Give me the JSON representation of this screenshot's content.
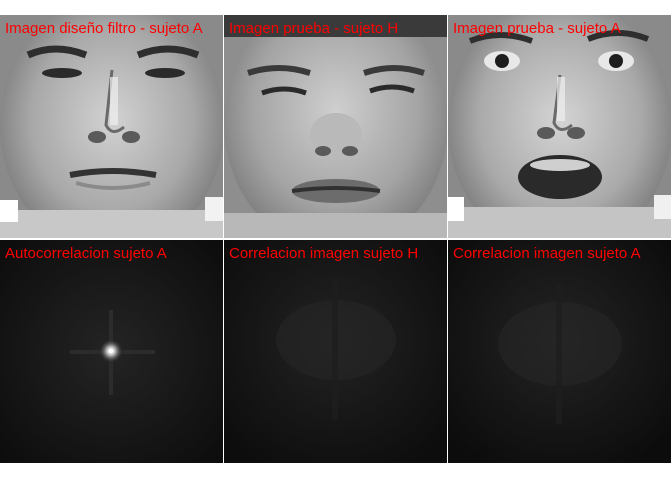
{
  "label_color": "#ff0000",
  "panels": {
    "design_filter": {
      "label": "Imagen diseño filtro - sujeto A",
      "content": "grayscale face photo, neutral expression"
    },
    "test_h": {
      "label": "Imagen prueba - sujeto H",
      "content": "grayscale face photo, squinting expression"
    },
    "test_a": {
      "label": "Imagen prueba - sujeto A",
      "content": "grayscale face photo, surprised expression, mouth open"
    },
    "autocorr_a": {
      "label": "Autocorrelacion sujeto A",
      "content": "dark correlation plane with a sharp bright central peak"
    },
    "corr_h": {
      "label": "Correlacion imagen sujeto H",
      "content": "dark correlation plane without a distinct peak"
    },
    "corr_a": {
      "label": "Correlacion imagen sujeto A",
      "content": "dark correlation plane without a distinct peak"
    }
  }
}
